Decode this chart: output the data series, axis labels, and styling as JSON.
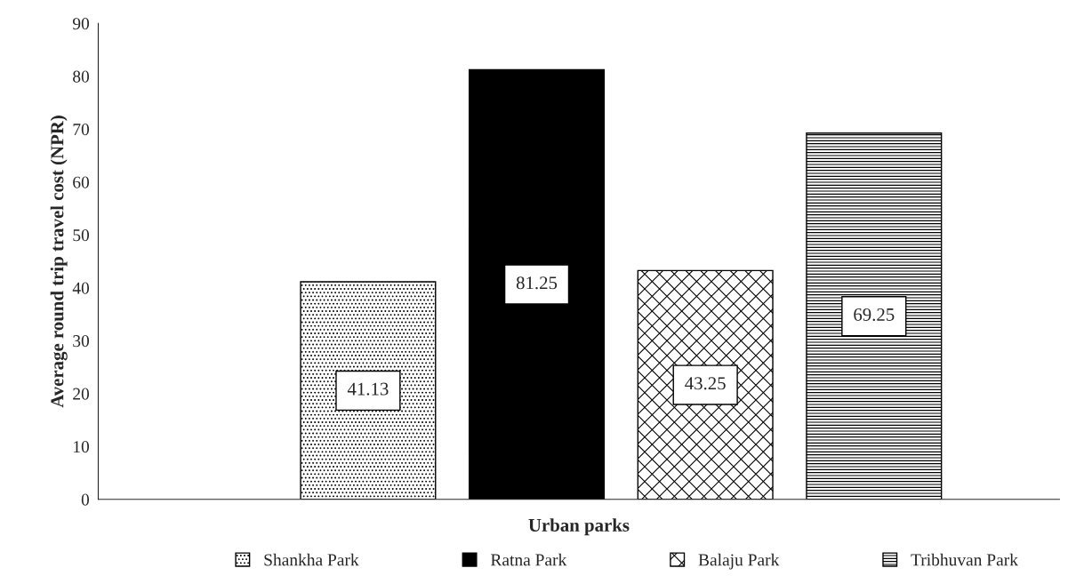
{
  "chart_data": {
    "type": "bar",
    "xlabel": "Urban parks",
    "ylabel": "Average round trip travel cost (NPR)",
    "categories": [
      null
    ],
    "series": [
      {
        "name": "Shankha Park",
        "color": "#000000",
        "values": [
          41.13
        ]
      },
      {
        "name": "Ratna Park",
        "color": "#000000",
        "values": [
          81.25
        ]
      },
      {
        "name": "Balaju Park",
        "color": "#000000",
        "values": [
          43.25
        ]
      },
      {
        "name": "Tribhuvan Park",
        "color": "#000000",
        "values": [
          69.25
        ]
      }
    ],
    "ylim": [
      0,
      90
    ],
    "yticks": [
      0,
      10,
      20,
      30,
      40,
      50,
      60,
      70,
      80,
      90
    ],
    "data_labels": true,
    "grid": false,
    "legend": "bottom"
  }
}
